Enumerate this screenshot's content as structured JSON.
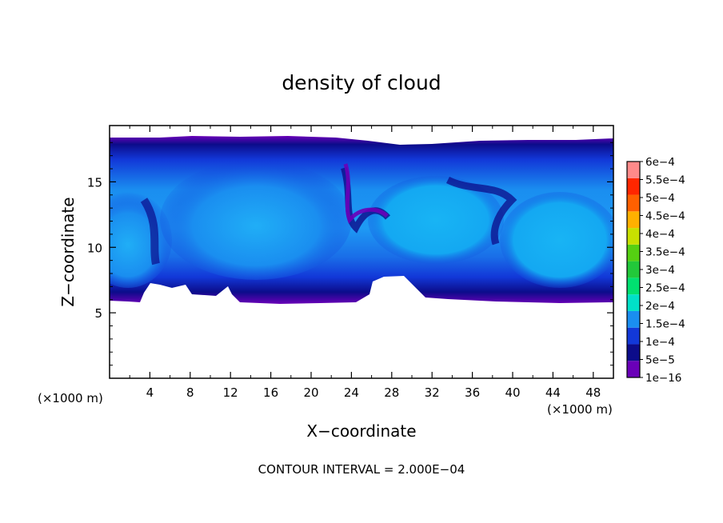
{
  "chart_data": {
    "type": "heatmap",
    "title": "density of cloud",
    "xlabel": "X−coordinate",
    "ylabel": "Z−coordinate",
    "x_unit": "(×1000 m)",
    "z_unit": "(×1000 m)",
    "xlim": [
      0,
      50
    ],
    "ylim": [
      0,
      19.3
    ],
    "x_ticks": [
      "4",
      "8",
      "12",
      "16",
      "20",
      "24",
      "28",
      "32",
      "36",
      "40",
      "44",
      "48"
    ],
    "y_ticks": [
      "5",
      "10",
      "15"
    ],
    "colorbar": {
      "labels": [
        "1e−16",
        "5e−5",
        "1e−4",
        "1.5e−4",
        "2e−4",
        "2.5e−4",
        "3e−4",
        "3.5e−4",
        "4e−4",
        "4.5e−4",
        "5e−4",
        "5.5e−4",
        "6e−4"
      ],
      "colors": [
        "#6a00b8",
        "#0c0c8a",
        "#1238d8",
        "#1a8ef0",
        "#00e0c8",
        "#00e070",
        "#22c83a",
        "#55d012",
        "#c8e000",
        "#ffb000",
        "#ff6000",
        "#ff2600",
        "#ff8a8a"
      ]
    },
    "footer": "CONTOUR INTERVAL =  2.000E−04"
  }
}
